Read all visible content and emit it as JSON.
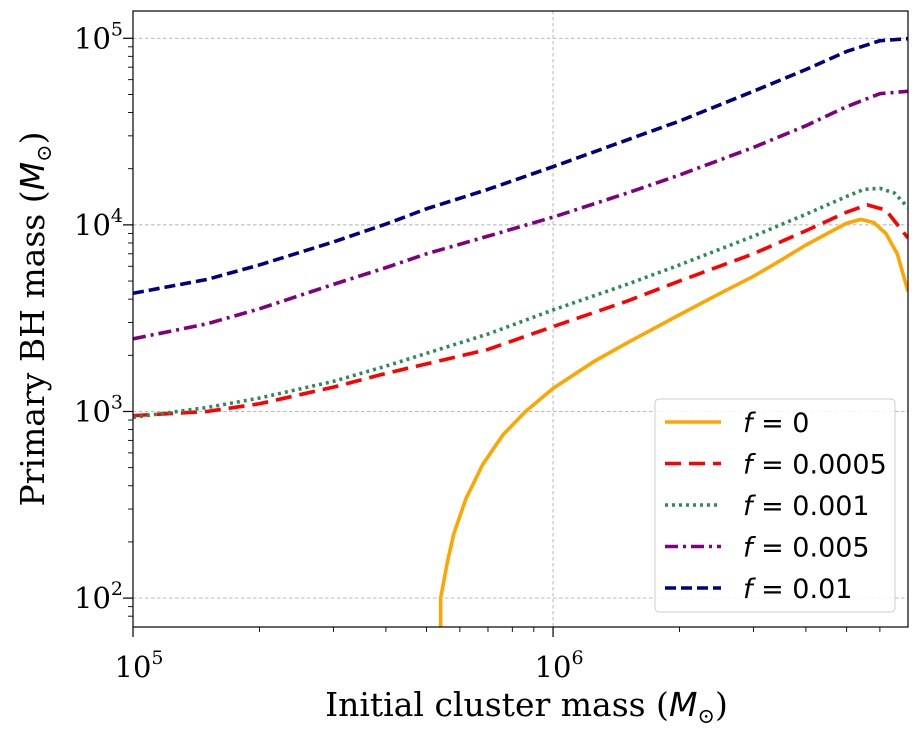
{
  "chart_data": {
    "type": "line",
    "xscale": "log",
    "yscale": "log",
    "xlim": [
      100000,
      7000000
    ],
    "ylim": [
      70,
      140000
    ],
    "grid": true,
    "legend_position": "lower right",
    "xlabel": {
      "prefix": "Initial cluster mass (",
      "symbol": "M",
      "subscript": "⊙",
      "suffix": ")"
    },
    "ylabel": {
      "prefix": "Primary BH mass (",
      "symbol": "M",
      "subscript": "⊙",
      "suffix": ")"
    },
    "x_ticks": [
      {
        "value": 100000,
        "base": "10",
        "exp": "5"
      },
      {
        "value": 1000000,
        "base": "10",
        "exp": "6"
      }
    ],
    "y_ticks": [
      {
        "value": 100,
        "base": "10",
        "exp": "2"
      },
      {
        "value": 1000,
        "base": "10",
        "exp": "3"
      },
      {
        "value": 10000,
        "base": "10",
        "exp": "4"
      },
      {
        "value": 100000,
        "base": "10",
        "exp": "5"
      }
    ],
    "series": [
      {
        "name": "f = 0",
        "legend_var": "f",
        "legend_value": "0",
        "color": "#ffa500",
        "dash": "solid",
        "x": [
          540000,
          540000,
          560000,
          580000,
          620000,
          680000,
          760000,
          860000,
          1000000,
          1250000,
          1500000,
          2000000,
          2500000,
          3000000,
          3500000,
          4000000,
          4500000,
          5000000,
          5400000,
          5800000,
          6200000,
          6600000,
          7000000
        ],
        "y": [
          70,
          100,
          155,
          220,
          340,
          520,
          750,
          1000,
          1330,
          1850,
          2330,
          3300,
          4300,
          5300,
          6500,
          7800,
          9000,
          10200,
          10700,
          10300,
          9000,
          7000,
          4400
        ]
      },
      {
        "name": "f = 0.0005",
        "legend_var": "f",
        "legend_value": "0.0005",
        "color": "#ff0000",
        "dash": "long-dash",
        "x": [
          100000,
          150000,
          200000,
          300000,
          400000,
          500000,
          700000,
          1000000,
          1500000,
          2000000,
          3000000,
          4000000,
          5000000,
          5600000,
          6200000,
          7000000
        ],
        "y": [
          950,
          1000,
          1100,
          1350,
          1600,
          1800,
          2150,
          2850,
          3900,
          5000,
          7000,
          9300,
          11700,
          12800,
          12000,
          8500
        ]
      },
      {
        "name": "f = 0.001",
        "legend_var": "f",
        "legend_value": "0.001",
        "color": "#2e8b57",
        "dash": "dotted",
        "x": [
          100000,
          150000,
          200000,
          300000,
          400000,
          500000,
          700000,
          1000000,
          1500000,
          2000000,
          3000000,
          4000000,
          5000000,
          5500000,
          6000000,
          6500000,
          7000000
        ],
        "y": [
          930,
          1050,
          1180,
          1450,
          1750,
          2050,
          2600,
          3500,
          4800,
          6100,
          8700,
          11400,
          14200,
          15500,
          15700,
          14800,
          12400
        ]
      },
      {
        "name": "f = 0.005",
        "legend_var": "f",
        "legend_value": "0.005",
        "color": "#800080",
        "dash": "dash-dot",
        "x": [
          100000,
          150000,
          200000,
          300000,
          400000,
          500000,
          700000,
          1000000,
          1500000,
          2000000,
          3000000,
          4000000,
          5000000,
          6000000,
          7000000
        ],
        "y": [
          2450,
          2950,
          3550,
          4800,
          5900,
          7000,
          8700,
          11000,
          14800,
          18500,
          26000,
          34000,
          43000,
          50500,
          52000
        ]
      },
      {
        "name": "f = 0.01",
        "legend_var": "f",
        "legend_value": "0.01",
        "color": "#000080",
        "dash": "dashed",
        "x": [
          100000,
          150000,
          200000,
          300000,
          400000,
          500000,
          700000,
          1000000,
          1500000,
          2000000,
          3000000,
          4000000,
          5000000,
          6000000,
          7000000
        ],
        "y": [
          4300,
          5100,
          6100,
          8100,
          10100,
          12200,
          15500,
          20500,
          28500,
          36000,
          52000,
          68000,
          85000,
          97000,
          99500
        ]
      }
    ]
  }
}
